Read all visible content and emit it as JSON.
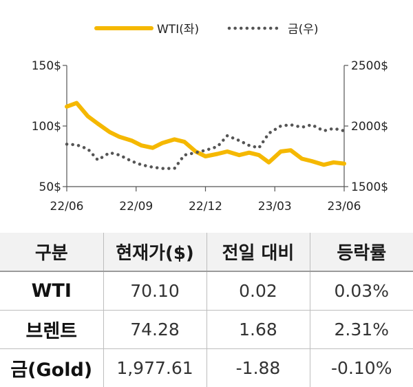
{
  "chart_data": {
    "type": "line",
    "legend": {
      "placement": "top-center",
      "entries": [
        {
          "label": "WTI(좌)",
          "color": "#f5b800",
          "style": "solid"
        },
        {
          "label": "금(우)",
          "color": "#555555",
          "style": "dotted"
        }
      ]
    },
    "x_ticks": [
      "22/06",
      "22/09",
      "22/12",
      "23/03",
      "23/06"
    ],
    "x_range": [
      "2022-06-01",
      "2023-06-30"
    ],
    "y_left": {
      "ticks": [
        "150$",
        "100$",
        "50$"
      ],
      "range": [
        50,
        150
      ]
    },
    "y_right": {
      "ticks": [
        "2500$",
        "2000$",
        "1500$"
      ],
      "range": [
        1500,
        2500
      ]
    },
    "grid": false,
    "series": [
      {
        "name": "WTI(좌)",
        "axis": "left",
        "x": [
          "2022-06-01",
          "2022-06-15",
          "2022-07-01",
          "2022-07-15",
          "2022-08-01",
          "2022-08-15",
          "2022-09-01",
          "2022-09-15",
          "2022-10-01",
          "2022-10-15",
          "2022-11-01",
          "2022-11-15",
          "2022-12-01",
          "2022-12-15",
          "2023-01-01",
          "2023-01-15",
          "2023-02-01",
          "2023-02-15",
          "2023-03-01",
          "2023-03-15",
          "2023-04-01",
          "2023-04-15",
          "2023-05-01",
          "2023-05-15",
          "2023-06-01",
          "2023-06-15",
          "2023-06-30"
        ],
        "values": [
          116,
          119,
          108,
          102,
          95,
          91,
          88,
          84,
          82,
          86,
          89,
          87,
          79,
          75,
          77,
          79,
          76,
          78,
          76,
          70,
          79,
          80,
          73,
          71,
          68,
          70,
          69
        ]
      },
      {
        "name": "금(우)",
        "axis": "right",
        "x": [
          "2022-06-01",
          "2022-06-15",
          "2022-07-01",
          "2022-07-15",
          "2022-08-01",
          "2022-08-15",
          "2022-09-01",
          "2022-09-15",
          "2022-10-01",
          "2022-10-15",
          "2022-11-01",
          "2022-11-15",
          "2022-12-01",
          "2022-12-15",
          "2023-01-01",
          "2023-01-15",
          "2023-02-01",
          "2023-02-15",
          "2023-03-01",
          "2023-03-15",
          "2023-04-01",
          "2023-04-15",
          "2023-05-01",
          "2023-05-15",
          "2023-06-01",
          "2023-06-15",
          "2023-06-30"
        ],
        "values": [
          1850,
          1845,
          1810,
          1720,
          1780,
          1760,
          1710,
          1680,
          1660,
          1650,
          1650,
          1760,
          1780,
          1800,
          1830,
          1920,
          1880,
          1840,
          1820,
          1940,
          2000,
          2010,
          1990,
          2010,
          1960,
          1980,
          1960
        ]
      }
    ]
  },
  "table": {
    "headers": [
      "구분",
      "현재가($)",
      "전일 대비",
      "등락률"
    ],
    "rows": [
      [
        "WTI",
        "70.10",
        "0.02",
        "0.03%"
      ],
      [
        "브렌트",
        "74.28",
        "1.68",
        "2.31%"
      ],
      [
        "금(Gold)",
        "1,977.61",
        "-1.88",
        "-0.10%"
      ]
    ]
  }
}
